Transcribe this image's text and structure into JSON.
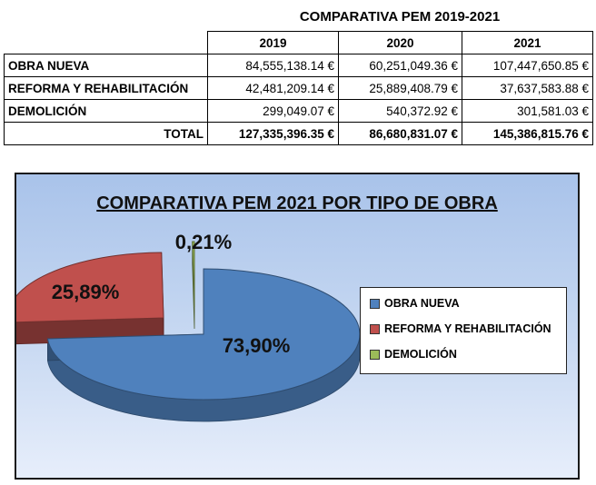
{
  "table": {
    "title": "COMPARATIVA PEM 2019-2021",
    "years": [
      "2019",
      "2020",
      "2021"
    ],
    "rows": [
      {
        "label": "OBRA NUEVA",
        "values": [
          "84,555,138.14 €",
          "60,251,049.36 €",
          "107,447,650.85 €"
        ]
      },
      {
        "label": "REFORMA Y REHABILITACIÓN",
        "values": [
          "42,481,209.14 €",
          "25,889,408.79 €",
          "37,637,583.88 €"
        ]
      },
      {
        "label": "DEMOLICIÓN",
        "values": [
          "299,049.07 €",
          "540,372.92 €",
          "301,581.03 €"
        ]
      }
    ],
    "total": {
      "label": "TOTAL",
      "values": [
        "127,335,396.35 €",
        "86,680,831.07 €",
        "145,386,815.76 €"
      ]
    }
  },
  "chart_data": {
    "type": "pie",
    "title": "COMPARATIVA PEM 2021 POR TIPO DE OBRA",
    "style": "3d-exploded",
    "legend_position": "right",
    "categories": [
      "OBRA NUEVA",
      "REFORMA Y REHABILITACIÓN",
      "DEMOLICIÓN"
    ],
    "values": [
      73.9,
      25.89,
      0.21
    ],
    "labels": [
      "73,90%",
      "25,89%",
      "0,21%"
    ],
    "colors": [
      "#4f81bd",
      "#c0504d",
      "#9bbb59"
    ]
  }
}
